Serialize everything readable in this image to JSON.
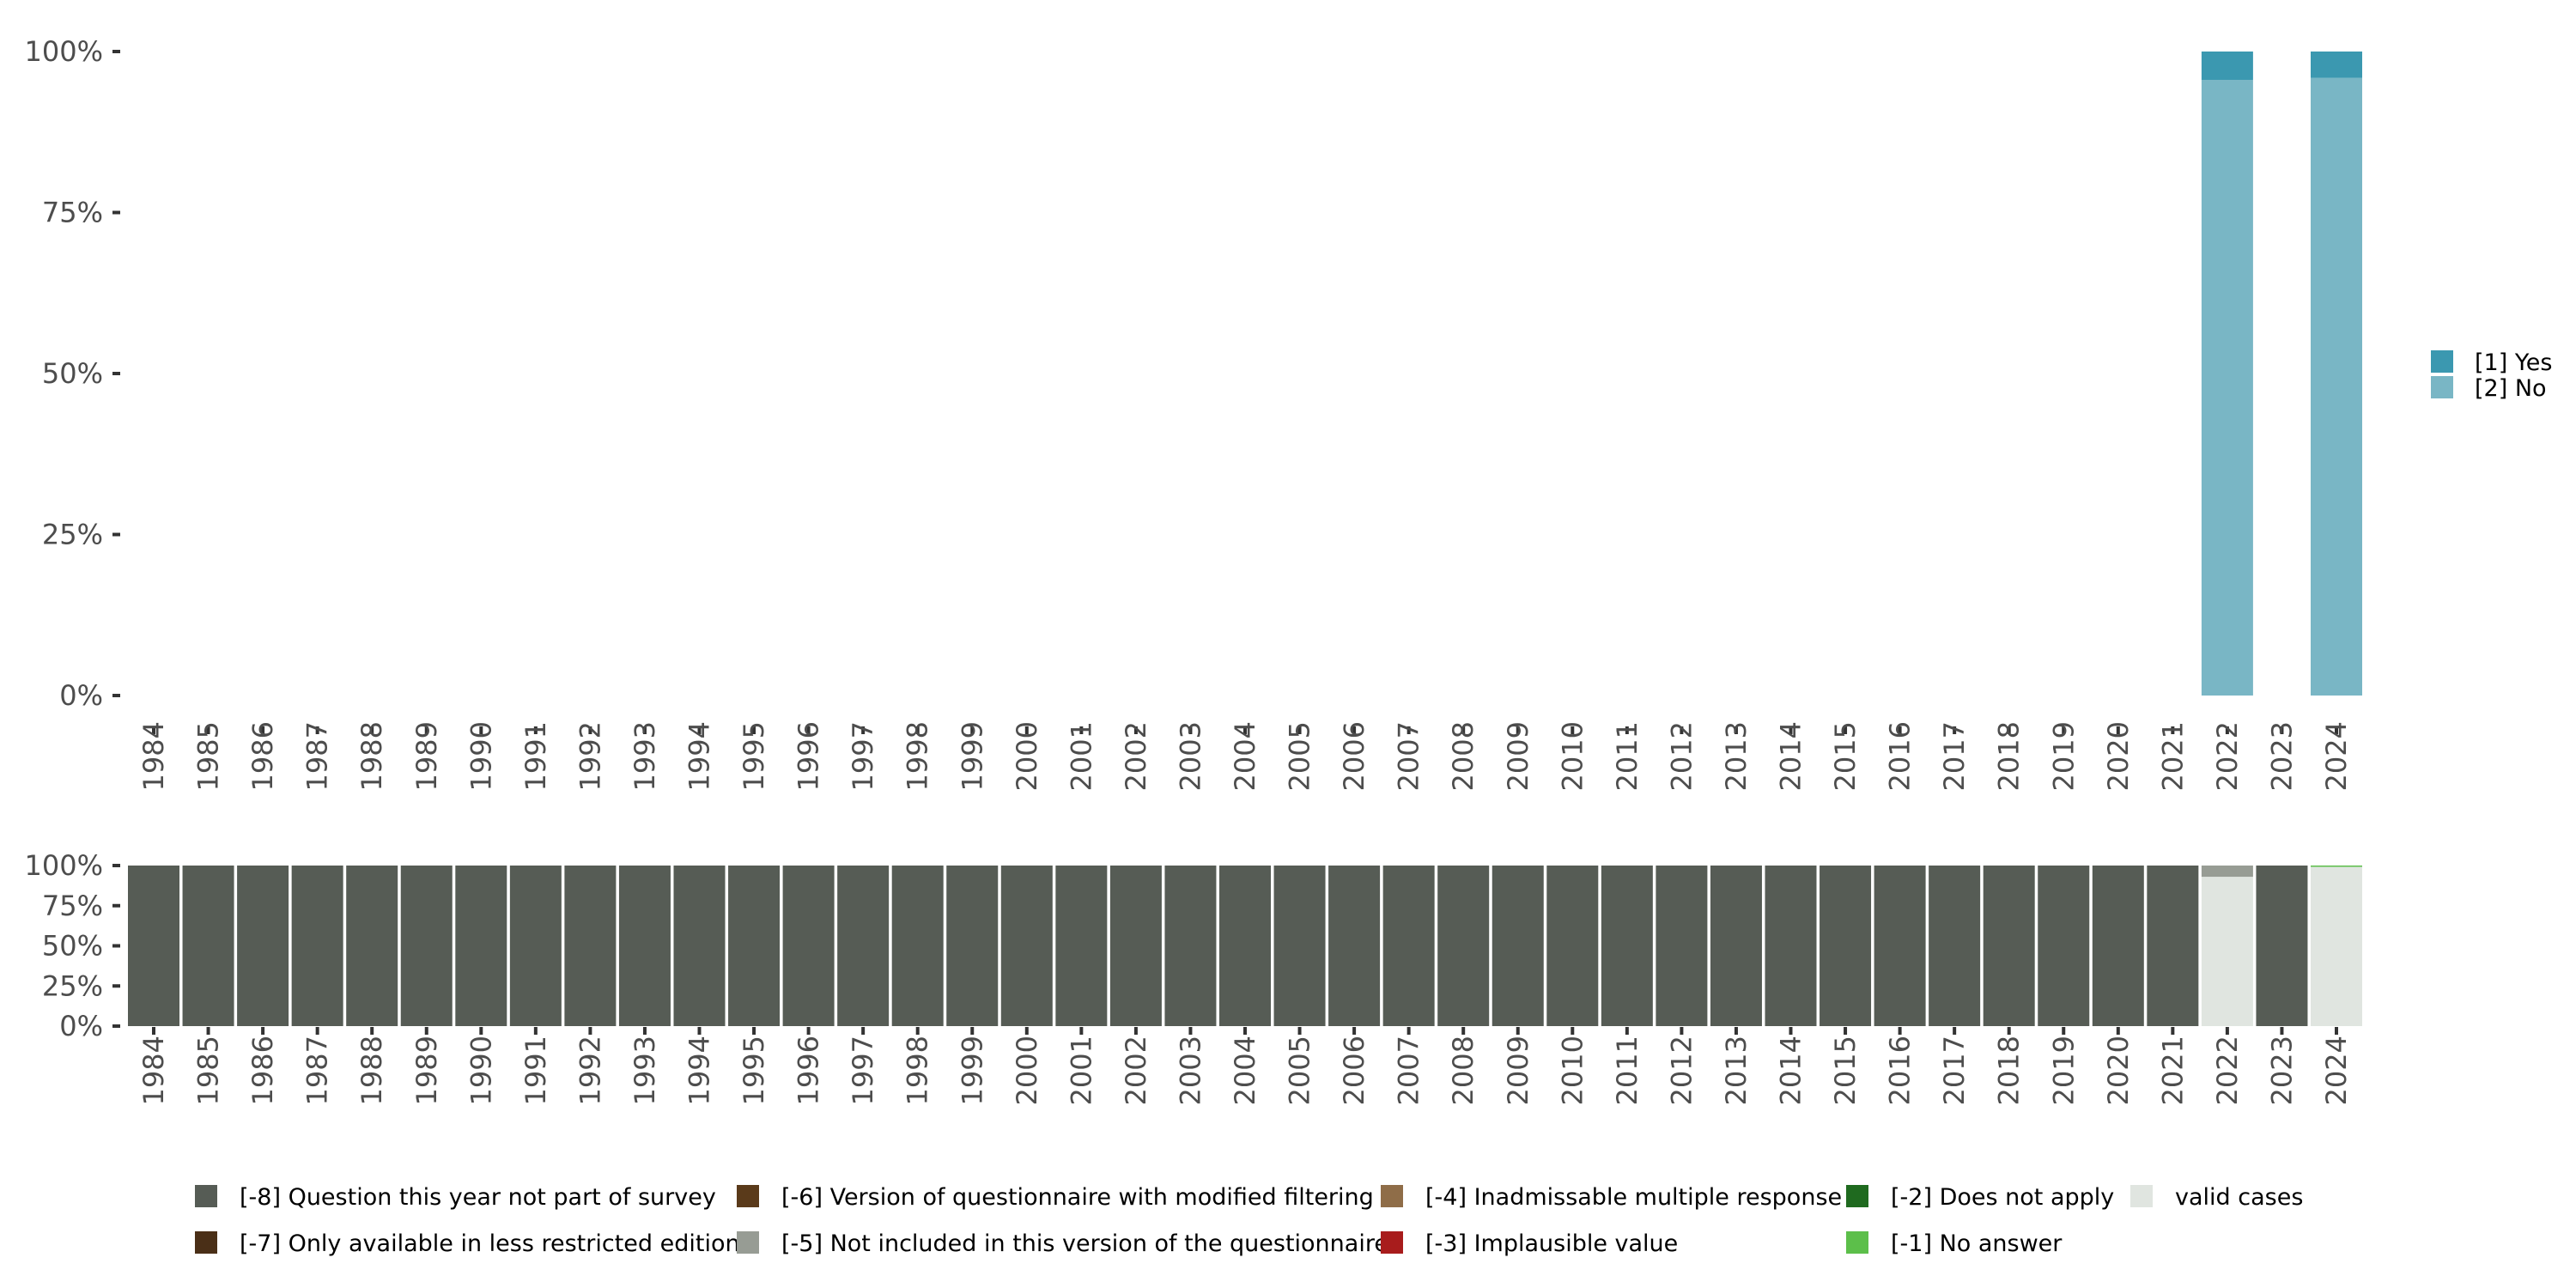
{
  "chart_data": [
    {
      "type": "bar",
      "stacked": true,
      "title": "",
      "xlabel": "",
      "ylabel": "",
      "ylim": [
        0,
        100
      ],
      "yticks": [
        "0%",
        "25%",
        "50%",
        "75%",
        "100%"
      ],
      "categories": [
        "1984",
        "1985",
        "1986",
        "1987",
        "1988",
        "1989",
        "1990",
        "1991",
        "1992",
        "1993",
        "1994",
        "1995",
        "1996",
        "1997",
        "1998",
        "1999",
        "2000",
        "2001",
        "2002",
        "2003",
        "2004",
        "2005",
        "2006",
        "2007",
        "2008",
        "2009",
        "2010",
        "2011",
        "2012",
        "2013",
        "2014",
        "2015",
        "2016",
        "2017",
        "2018",
        "2019",
        "2020",
        "2021",
        "2022",
        "2023",
        "2024"
      ],
      "series": [
        {
          "name": "[2] No",
          "color": "#79b6c5",
          "values": {
            "2022": 95.6,
            "2024": 95.9
          }
        },
        {
          "name": "[1] Yes",
          "color": "#3b98b0",
          "values": {
            "2022": 4.4,
            "2024": 4.1
          }
        }
      ],
      "legend": {
        "placement": "right",
        "entries": [
          "[1] Yes",
          "[2] No"
        ]
      }
    },
    {
      "type": "bar",
      "stacked": true,
      "ylim": [
        0,
        100
      ],
      "yticks": [
        "0%",
        "25%",
        "50%",
        "75%",
        "100%"
      ],
      "categories": [
        "1984",
        "1985",
        "1986",
        "1987",
        "1988",
        "1989",
        "1990",
        "1991",
        "1992",
        "1993",
        "1994",
        "1995",
        "1996",
        "1997",
        "1998",
        "1999",
        "2000",
        "2001",
        "2002",
        "2003",
        "2004",
        "2005",
        "2006",
        "2007",
        "2008",
        "2009",
        "2010",
        "2011",
        "2012",
        "2013",
        "2014",
        "2015",
        "2016",
        "2017",
        "2018",
        "2019",
        "2020",
        "2021",
        "2022",
        "2023",
        "2024"
      ],
      "series": [
        {
          "name": "valid cases",
          "color": "#e0e5e0",
          "values": {
            "2022": 93,
            "2024": 99.5
          }
        },
        {
          "name": "[-1] No answer",
          "color": "#5cbf4a",
          "values": {
            "2024": 0.5
          }
        },
        {
          "name": "[-5] Not included in this version of the questionnaire",
          "color": "#979c94",
          "values": {
            "2022": 7
          }
        },
        {
          "name": "[-8] Question this year not part of survey",
          "color": "#565c55",
          "values": {
            "1984": 100,
            "1985": 100,
            "1986": 100,
            "1987": 100,
            "1988": 100,
            "1989": 100,
            "1990": 100,
            "1991": 100,
            "1992": 100,
            "1993": 100,
            "1994": 100,
            "1995": 100,
            "1996": 100,
            "1997": 100,
            "1998": 100,
            "1999": 100,
            "2000": 100,
            "2001": 100,
            "2002": 100,
            "2003": 100,
            "2004": 100,
            "2005": 100,
            "2006": 100,
            "2007": 100,
            "2008": 100,
            "2009": 100,
            "2010": 100,
            "2011": 100,
            "2012": 100,
            "2013": 100,
            "2014": 100,
            "2015": 100,
            "2016": 100,
            "2017": 100,
            "2018": 100,
            "2019": 100,
            "2020": 100,
            "2021": 100,
            "2023": 100
          }
        }
      ],
      "legend": {
        "placement": "bottom",
        "entries": [
          {
            "label": "[-8] Question this year not part of survey",
            "color": "#565c55"
          },
          {
            "label": "[-7] Only available in less restricted edition",
            "color": "#4a2f17"
          },
          {
            "label": "[-6] Version of questionnaire with modified filtering",
            "color": "#5a3a1a"
          },
          {
            "label": "[-5] Not included in this version of the questionnaire",
            "color": "#979c94"
          },
          {
            "label": "[-4] Inadmissable multiple response",
            "color": "#8f6d48"
          },
          {
            "label": "[-3] Implausible value",
            "color": "#a81c1c"
          },
          {
            "label": "[-2] Does not apply",
            "color": "#1f6a1f"
          },
          {
            "label": "[-1] No answer",
            "color": "#5cbf4a"
          },
          {
            "label": "valid cases",
            "color": "#e0e5e0"
          }
        ]
      }
    }
  ]
}
